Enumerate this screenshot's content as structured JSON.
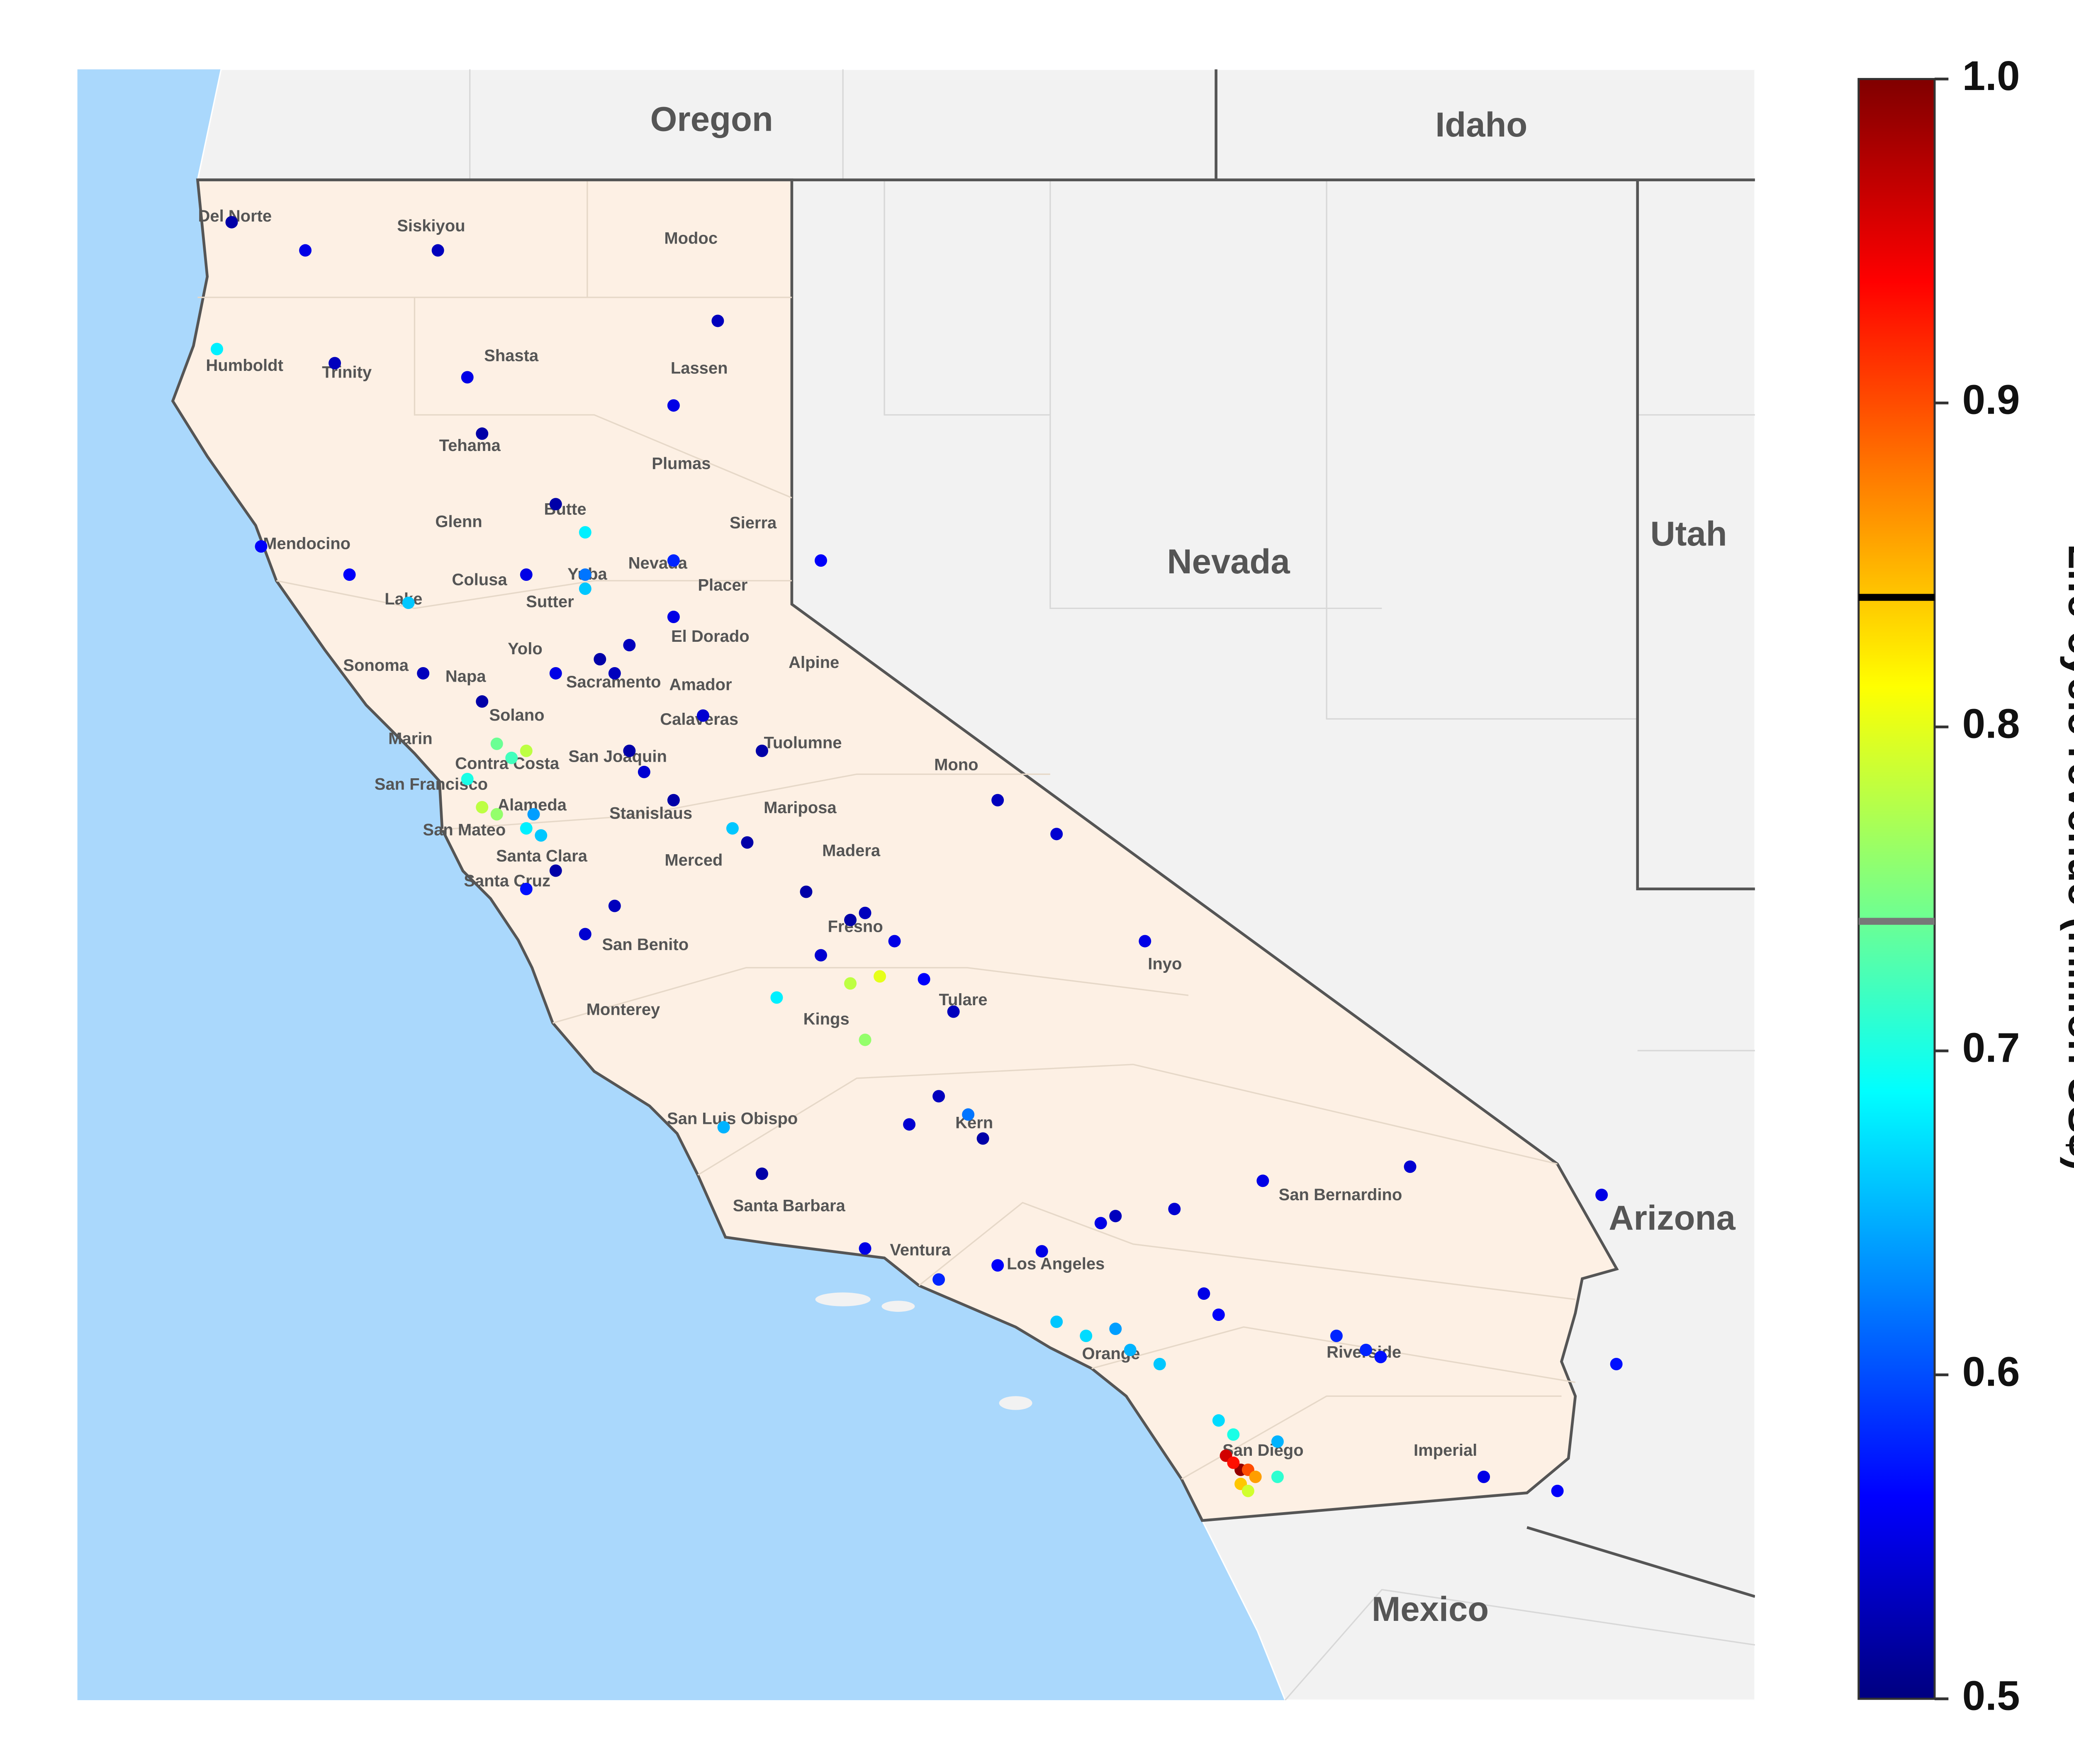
{
  "chart_data": {
    "type": "map",
    "states": [
      "Oregon",
      "Idaho",
      "Nevada",
      "Utah",
      "Arizona",
      "Mexico"
    ],
    "counties": [
      "Del Norte",
      "Siskiyou",
      "Modoc",
      "Humboldt",
      "Trinity",
      "Shasta",
      "Lassen",
      "Tehama",
      "Plumas",
      "Glenn",
      "Butte",
      "Sierra",
      "Mendocino",
      "Colusa",
      "Yuba",
      "Nevada",
      "Placer",
      "Lake",
      "Sutter",
      "Yolo",
      "El Dorado",
      "Alpine",
      "Sonoma",
      "Napa",
      "Sacramento",
      "Amador",
      "Solano",
      "Calaveras",
      "Tuolumne",
      "Marin",
      "Contra Costa",
      "San Joaquin",
      "Mono",
      "San Francisco",
      "Alameda",
      "Stanislaus",
      "Mariposa",
      "San Mateo",
      "Santa Clara",
      "Madera",
      "Merced",
      "Santa Cruz",
      "Fresno",
      "San Benito",
      "Inyo",
      "Tulare",
      "Monterey",
      "Kings",
      "Kern",
      "San Luis Obispo",
      "San Bernardino",
      "Santa Barbara",
      "Ventura",
      "Los Angeles",
      "Riverside",
      "Orange",
      "San Diego",
      "Imperial"
    ],
    "points": {
      "lon": [
        -124.1,
        -124.0,
        -123.5,
        -123.3,
        -122.4,
        -122.3,
        -121.8,
        -121.6,
        -121.6,
        -121.6,
        -122.0,
        -123.2,
        -122.8,
        -122.7,
        -122.3,
        -121.5,
        -121.4,
        -121.3,
        -121.0,
        -121.0,
        -120.0,
        -121.8,
        -122.2,
        -122.0,
        -122.1,
        -122.4,
        -122.3,
        -122.2,
        -122.0,
        -121.9,
        -121.95,
        -121.3,
        -121.2,
        -121.0,
        -120.5,
        -120.6,
        -120.1,
        -119.8,
        -119.7,
        -119.5,
        -120.0,
        -120.3,
        -121.6,
        -121.4,
        -122.0,
        -121.8,
        -119.8,
        -119.6,
        -119.3,
        -119.1,
        -119.7,
        -119.0,
        -119.2,
        -118.9,
        -119.4,
        -120.66,
        -120.4,
        -119.7,
        -119.2,
        -118.8,
        -118.5,
        -118.1,
        -117.6,
        -117.0,
        -118.4,
        -118.2,
        -118.0,
        -117.9,
        -117.7,
        -117.4,
        -117.3,
        -116.5,
        -116.3,
        -116.2,
        -117.3,
        -117.2,
        -117.25,
        -117.15,
        -117.2,
        -117.1,
        -117.05,
        -117.15,
        -117.1,
        -116.9,
        -116.9,
        -115.5,
        -115.0,
        -114.6,
        -114.7,
        -116.0,
        -117.8,
        -118.4,
        -118.8,
        -118.0,
        -120.4,
        -120.8,
        -121.0,
        -120.7,
        -122.6,
        -123.8
      ],
      "lat": [
        40.8,
        41.7,
        41.5,
        40.7,
        40.6,
        40.2,
        39.7,
        39.5,
        39.1,
        39.2,
        39.2,
        39.2,
        39.0,
        38.5,
        38.3,
        38.6,
        38.5,
        38.7,
        38.9,
        39.3,
        39.3,
        38.5,
        38.0,
        37.95,
        37.9,
        37.75,
        37.55,
        37.5,
        37.4,
        37.35,
        37.5,
        37.95,
        37.8,
        37.6,
        37.3,
        37.4,
        36.95,
        36.75,
        36.8,
        36.6,
        36.5,
        36.2,
        36.65,
        36.85,
        36.97,
        37.1,
        36.3,
        36.35,
        36.33,
        36.1,
        35.9,
        35.37,
        35.5,
        35.2,
        35.3,
        35.28,
        34.95,
        34.42,
        34.2,
        34.3,
        34.4,
        34.6,
        34.7,
        34.9,
        33.9,
        33.8,
        33.85,
        33.7,
        33.6,
        34.1,
        33.95,
        33.8,
        33.7,
        33.65,
        33.2,
        33.1,
        32.95,
        32.85,
        32.9,
        32.85,
        32.8,
        32.75,
        32.7,
        32.8,
        33.05,
        32.8,
        32.7,
        33.6,
        34.8,
        35.0,
        36.6,
        37.36,
        37.6,
        34.65,
        37.95,
        38.2,
        40.4,
        41.0,
        41.5,
        39.4
      ],
      "values": [
        0.68,
        0.52,
        0.55,
        0.53,
        0.55,
        0.52,
        0.52,
        0.68,
        0.66,
        0.62,
        0.55,
        0.56,
        0.66,
        0.53,
        0.52,
        0.52,
        0.53,
        0.53,
        0.55,
        0.58,
        0.56,
        0.55,
        0.74,
        0.78,
        0.72,
        0.7,
        0.78,
        0.76,
        0.68,
        0.66,
        0.64,
        0.52,
        0.54,
        0.52,
        0.52,
        0.66,
        0.52,
        0.52,
        0.53,
        0.55,
        0.54,
        0.68,
        0.54,
        0.53,
        0.57,
        0.52,
        0.78,
        0.8,
        0.56,
        0.53,
        0.76,
        0.62,
        0.53,
        0.52,
        0.54,
        0.65,
        0.52,
        0.55,
        0.58,
        0.56,
        0.55,
        0.55,
        0.54,
        0.55,
        0.66,
        0.67,
        0.64,
        0.65,
        0.66,
        0.55,
        0.56,
        0.58,
        0.58,
        0.57,
        0.67,
        0.7,
        0.96,
        0.99,
        0.93,
        0.9,
        0.86,
        0.84,
        0.79,
        0.71,
        0.65,
        0.55,
        0.56,
        0.57,
        0.55,
        0.54,
        0.55,
        0.54,
        0.53,
        0.53,
        0.52,
        0.54,
        0.55,
        0.53,
        0.53,
        0.56
      ]
    },
    "colorbar": {
      "label": "Life-cycle revenue (million US$)",
      "lim": [
        0.5,
        1.0
      ],
      "ticks": [
        0.5,
        0.6,
        0.7,
        0.8,
        0.9,
        {
          "value": 1.0,
          "label": "1.0"
        }
      ],
      "markers": [
        {
          "value": 0.84,
          "color": "#000000"
        },
        {
          "value": 0.74,
          "color": "#777777"
        }
      ]
    }
  }
}
